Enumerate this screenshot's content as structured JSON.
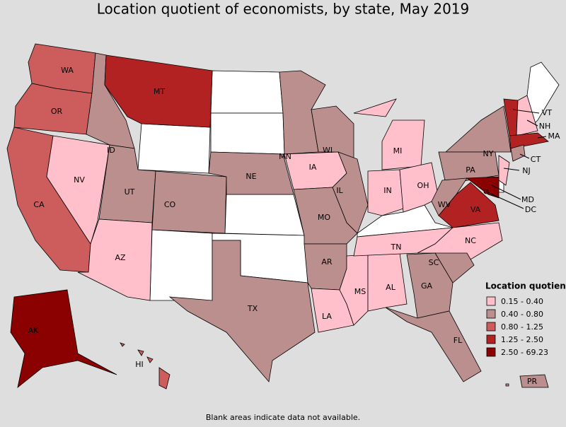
{
  "title": "Location quotient of economists, by state, May 2019",
  "footnote": "Blank areas indicate data not available.",
  "legend": {
    "title": "Location quotient",
    "items": [
      {
        "label": "0.15 - 0.40",
        "color": "#ffc0cb"
      },
      {
        "label": "0.40 - 0.80",
        "color": "#bc8f8f"
      },
      {
        "label": "0.80 - 1.25",
        "color": "#cd5c5c"
      },
      {
        "label": "1.25 - 2.50",
        "color": "#b22222"
      },
      {
        "label": "2.50 - 69.23",
        "color": "#8b0000"
      }
    ]
  },
  "states": [
    {
      "label": "WA",
      "class": 2
    },
    {
      "label": "OR",
      "class": 2
    },
    {
      "label": "CA",
      "class": 2
    },
    {
      "label": "NV",
      "class": 0
    },
    {
      "label": "ID",
      "class": 1
    },
    {
      "label": "MT",
      "class": 3
    },
    {
      "label": "UT",
      "class": 1
    },
    {
      "label": "AZ",
      "class": 0
    },
    {
      "label": "CO",
      "class": 1
    },
    {
      "label": "NE",
      "class": 1
    },
    {
      "label": "MN",
      "class": 1
    },
    {
      "label": "IA",
      "class": 0
    },
    {
      "label": "WI",
      "class": 1
    },
    {
      "label": "IL",
      "class": 1
    },
    {
      "label": "MO",
      "class": 1
    },
    {
      "label": "AR",
      "class": 1
    },
    {
      "label": "TX",
      "class": 1
    },
    {
      "label": "LA",
      "class": 0
    },
    {
      "label": "MS",
      "class": 0
    },
    {
      "label": "AL",
      "class": 0
    },
    {
      "label": "TN",
      "class": 0
    },
    {
      "label": "MI",
      "class": 0
    },
    {
      "label": "IN",
      "class": 0
    },
    {
      "label": "OH",
      "class": 0
    },
    {
      "label": "NY",
      "class": 1
    },
    {
      "label": "PA",
      "class": 1
    },
    {
      "label": "WV",
      "class": 1
    },
    {
      "label": "VA",
      "class": 3
    },
    {
      "label": "NC",
      "class": 0
    },
    {
      "label": "SC",
      "class": 1
    },
    {
      "label": "GA",
      "class": 1
    },
    {
      "label": "FL",
      "class": 1
    },
    {
      "label": "AK",
      "class": 4
    },
    {
      "label": "HI",
      "class": 2
    },
    {
      "label": "VT",
      "class": 3
    },
    {
      "label": "NH",
      "class": 0
    },
    {
      "label": "MA",
      "class": 3
    },
    {
      "label": "CT",
      "class": 1
    },
    {
      "label": "NJ",
      "class": 0
    },
    {
      "label": "MD",
      "class": 4
    },
    {
      "label": "DC",
      "class": 4
    },
    {
      "label": "PR",
      "class": 1
    }
  ]
}
